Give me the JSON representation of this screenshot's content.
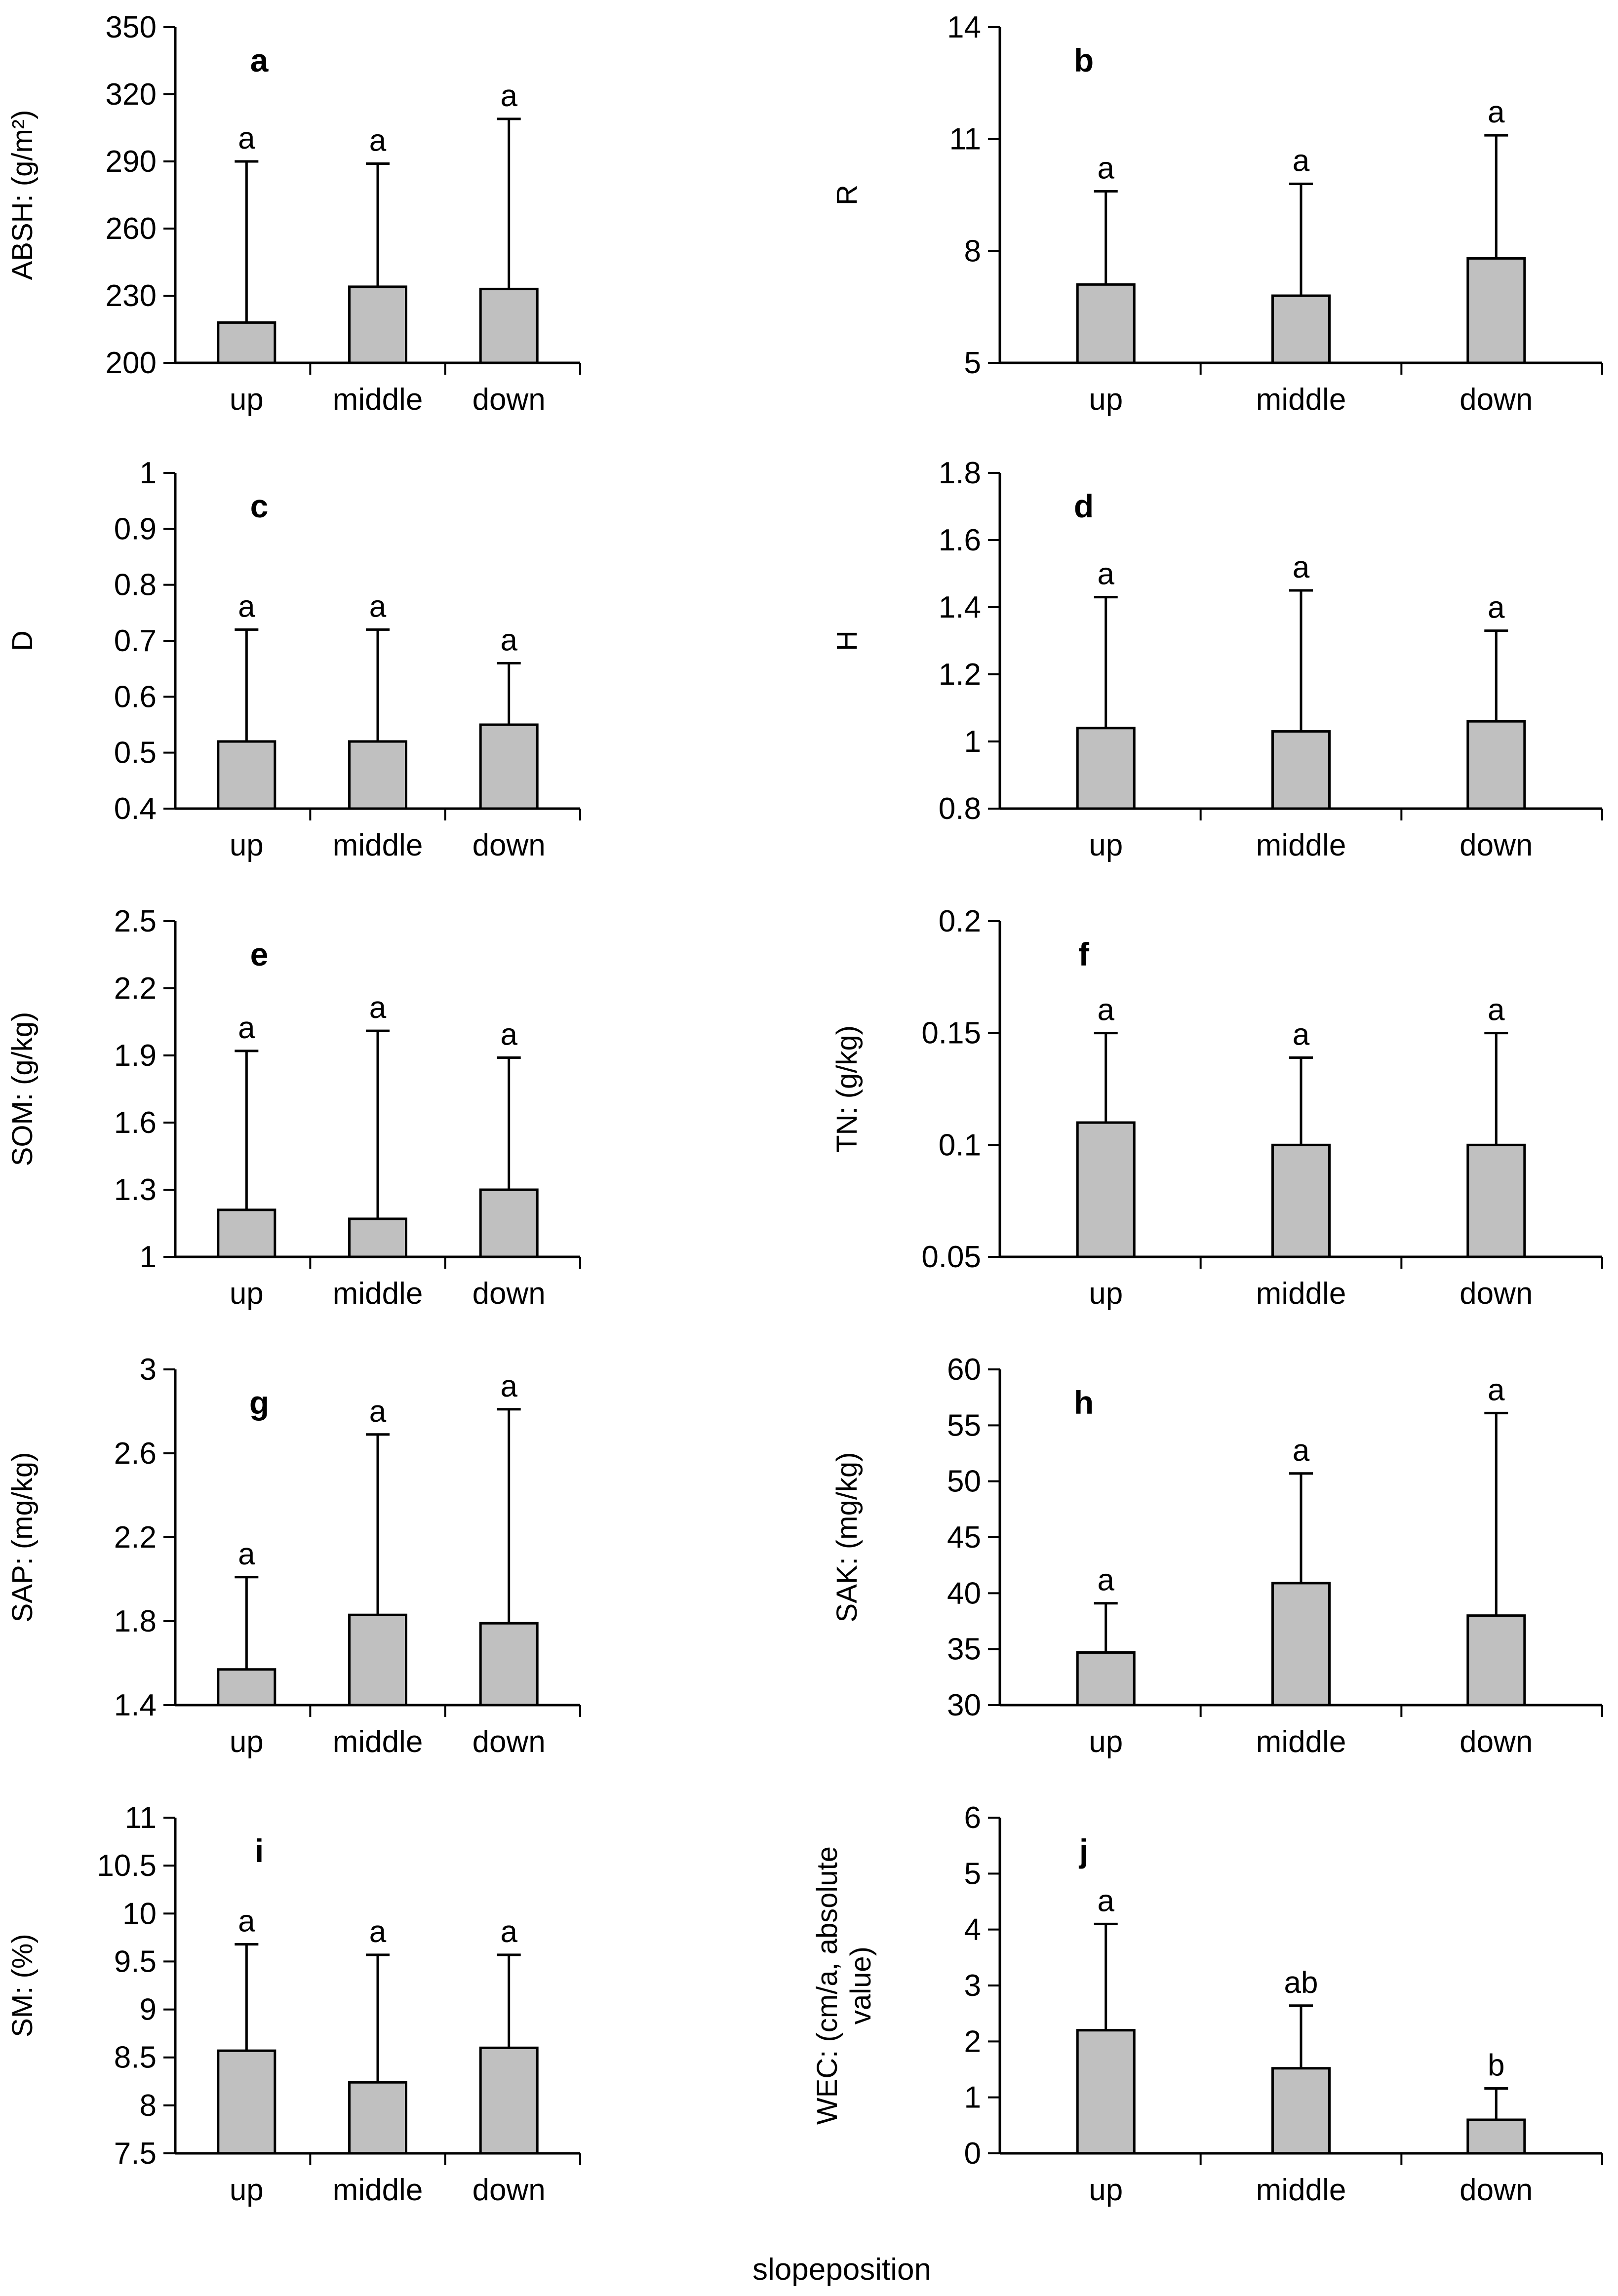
{
  "figure": {
    "xlabel": "slopeposition"
  },
  "chart_data": [
    {
      "type": "bar",
      "panel": "a",
      "ylabel": "ABSH: (g/m²)",
      "categories": [
        "up",
        "middle",
        "down"
      ],
      "values": [
        218,
        234,
        233
      ],
      "error_upper": [
        290,
        289,
        309
      ],
      "significance": [
        "a",
        "a",
        "a"
      ],
      "ylim": [
        200,
        350
      ],
      "yticks": [
        200,
        230,
        260,
        290,
        320,
        350
      ],
      "ytick_labels": [
        "200",
        "230",
        "260",
        "290",
        "320",
        "350"
      ]
    },
    {
      "type": "bar",
      "panel": "b",
      "ylabel": "R",
      "categories": [
        "up",
        "middle",
        "down"
      ],
      "values": [
        7.1,
        6.8,
        7.8
      ],
      "error_upper": [
        9.6,
        9.8,
        11.1
      ],
      "significance": [
        "a",
        "a",
        "a"
      ],
      "ylim": [
        5,
        14
      ],
      "yticks": [
        5,
        8,
        11,
        14
      ],
      "ytick_labels": [
        "5",
        "8",
        "11",
        "14"
      ]
    },
    {
      "type": "bar",
      "panel": "c",
      "ylabel": "D",
      "categories": [
        "up",
        "middle",
        "down"
      ],
      "values": [
        0.52,
        0.52,
        0.55
      ],
      "error_upper": [
        0.72,
        0.72,
        0.66
      ],
      "significance": [
        "a",
        "a",
        "a"
      ],
      "ylim": [
        0.4,
        1.0
      ],
      "yticks": [
        0.4,
        0.5,
        0.6,
        0.7,
        0.8,
        0.9,
        1.0
      ],
      "ytick_labels": [
        "0.4",
        "0.5",
        "0.6",
        "0.7",
        "0.8",
        "0.9",
        "1"
      ]
    },
    {
      "type": "bar",
      "panel": "d",
      "ylabel": "H",
      "categories": [
        "up",
        "middle",
        "down"
      ],
      "values": [
        1.04,
        1.03,
        1.06
      ],
      "error_upper": [
        1.43,
        1.45,
        1.33
      ],
      "significance": [
        "a",
        "a",
        "a"
      ],
      "ylim": [
        0.8,
        1.8
      ],
      "yticks": [
        0.8,
        1.0,
        1.2,
        1.4,
        1.6,
        1.8
      ],
      "ytick_labels": [
        "0.8",
        "1",
        "1.2",
        "1.4",
        "1.6",
        "1.8"
      ]
    },
    {
      "type": "bar",
      "panel": "e",
      "ylabel": "SOM: (g/kg)",
      "categories": [
        "up",
        "middle",
        "down"
      ],
      "values": [
        1.21,
        1.17,
        1.3
      ],
      "error_upper": [
        1.92,
        2.01,
        1.89
      ],
      "significance": [
        "a",
        "a",
        "a"
      ],
      "ylim": [
        1.0,
        2.5
      ],
      "yticks": [
        1.0,
        1.3,
        1.6,
        1.9,
        2.2,
        2.5
      ],
      "ytick_labels": [
        "1",
        "1.3",
        "1.6",
        "1.9",
        "2.2",
        "2.5"
      ]
    },
    {
      "type": "bar",
      "panel": "f",
      "ylabel": "TN: (g/kg)",
      "categories": [
        "up",
        "middle",
        "down"
      ],
      "values": [
        0.11,
        0.1,
        0.1
      ],
      "error_upper": [
        0.15,
        0.139,
        0.15
      ],
      "significance": [
        "a",
        "a",
        "a"
      ],
      "ylim": [
        0.05,
        0.2
      ],
      "yticks": [
        0.05,
        0.1,
        0.15,
        0.2
      ],
      "ytick_labels": [
        "0.05",
        "0.1",
        "0.15",
        "0.2"
      ]
    },
    {
      "type": "bar",
      "panel": "g",
      "ylabel": "SAP: (mg/kg)",
      "categories": [
        "up",
        "middle",
        "down"
      ],
      "values": [
        1.57,
        1.83,
        1.79
      ],
      "error_upper": [
        2.01,
        2.69,
        2.81
      ],
      "significance": [
        "a",
        "a",
        "a"
      ],
      "ylim": [
        1.4,
        3.0
      ],
      "yticks": [
        1.4,
        1.8,
        2.2,
        2.6,
        3.0
      ],
      "ytick_labels": [
        "1.4",
        "1.8",
        "2.2",
        "2.6",
        "3"
      ]
    },
    {
      "type": "bar",
      "panel": "h",
      "ylabel": "SAK: (mg/kg)",
      "categories": [
        "up",
        "middle",
        "down"
      ],
      "values": [
        34.7,
        40.9,
        38.0
      ],
      "error_upper": [
        39.1,
        50.7,
        56.1
      ],
      "significance": [
        "a",
        "a",
        "a"
      ],
      "ylim": [
        30,
        60
      ],
      "yticks": [
        30,
        35,
        40,
        45,
        50,
        55,
        60
      ],
      "ytick_labels": [
        "30",
        "35",
        "40",
        "45",
        "50",
        "55",
        "60"
      ]
    },
    {
      "type": "bar",
      "panel": "i",
      "ylabel": "SM: (%)",
      "categories": [
        "up",
        "middle",
        "down"
      ],
      "values": [
        8.57,
        8.24,
        8.6
      ],
      "error_upper": [
        9.68,
        9.57,
        9.57
      ],
      "significance": [
        "a",
        "a",
        "a"
      ],
      "ylim": [
        7.5,
        11
      ],
      "yticks": [
        7.5,
        8,
        8.5,
        9,
        9.5,
        10,
        10.5,
        11
      ],
      "ytick_labels": [
        "7.5",
        "8",
        "8.5",
        "9",
        "9.5",
        "10",
        "10.5",
        "11"
      ]
    },
    {
      "type": "bar",
      "panel": "j",
      "ylabel": "WEC: (cm/a, absolute value)",
      "ylabel_lines": [
        "WEC: (cm/a, absolute",
        "value)"
      ],
      "categories": [
        "up",
        "middle",
        "down"
      ],
      "values": [
        2.2,
        1.52,
        0.6
      ],
      "error_upper": [
        4.1,
        2.64,
        1.16
      ],
      "significance": [
        "a",
        "ab",
        "b"
      ],
      "ylim": [
        0,
        6
      ],
      "yticks": [
        0,
        1,
        2,
        3,
        4,
        5,
        6
      ],
      "ytick_labels": [
        "0",
        "1",
        "2",
        "3",
        "4",
        "5",
        "6"
      ]
    }
  ]
}
